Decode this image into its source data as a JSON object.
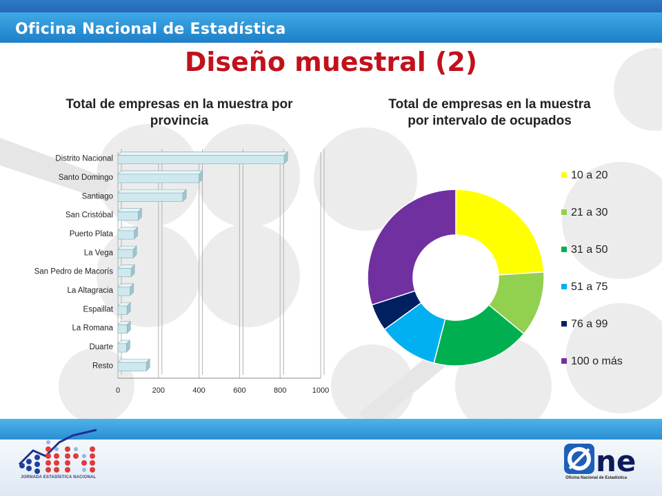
{
  "header": {
    "org_name": "Oficina Nacional de Estadística"
  },
  "title": "Diseño muestral (2)",
  "chart_data": [
    {
      "type": "bar",
      "orientation": "horizontal",
      "title": "Total de empresas en la muestra por provincia",
      "categories": [
        "Distrito Nacional",
        "Santo Domingo",
        "Santiago",
        "San Cristóbal",
        "Puerto Plata",
        "La Vega",
        "San Pedro de Macorís",
        "La Altagracia",
        "Espaillat",
        "La Romana",
        "Duarte",
        "Resto"
      ],
      "values": [
        820,
        400,
        320,
        100,
        80,
        75,
        65,
        60,
        45,
        45,
        42,
        140
      ],
      "xlim": [
        0,
        1000
      ],
      "ticks": [
        0,
        200,
        400,
        600,
        800,
        1000
      ],
      "grid": true,
      "bar_color": "#cfe8ee"
    },
    {
      "type": "pie",
      "variant": "donut",
      "title": "Total de empresas en la muestra por intervalo de ocupados",
      "categories": [
        "10 a 20",
        "21 a 30",
        "31 a 50",
        "51 a 75",
        "76 a 99",
        "100 o más"
      ],
      "values": [
        24,
        12,
        18,
        11,
        5,
        30
      ],
      "colors": [
        "#ffff00",
        "#92d050",
        "#00b050",
        "#00b0f0",
        "#002060",
        "#7030a0"
      ],
      "legend_position": "right"
    }
  ],
  "footer": {
    "left_logo_text": "JORNADA ESTADÍSTICA NACIONAL",
    "right_logo_text": "Oficina Nacional de Estadística",
    "right_logo_mark": "ne"
  },
  "colors": {
    "title": "#c1121c",
    "header_blue": "#1e5fae",
    "header_light": "#3fa9e6"
  }
}
